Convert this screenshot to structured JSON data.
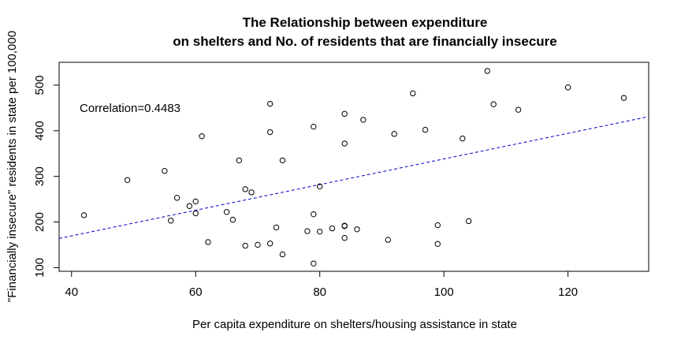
{
  "chart_data": {
    "type": "scatter",
    "title_line1": "The Relationship between expenditure",
    "title_line2": "on shelters and No. of residents that are financially insecure",
    "xlabel": "Per capita expenditure on shelters/housing assistance in state",
    "ylabel": "\"Financially insecure\" residents in state per 100,000",
    "annotation": "Correlation=0.4483",
    "xlim": [
      38,
      133
    ],
    "ylim": [
      92,
      550
    ],
    "x_ticks": [
      40,
      60,
      80,
      100,
      120
    ],
    "y_ticks": [
      100,
      200,
      300,
      400,
      500
    ],
    "grid": false,
    "regression_line": {
      "style": "dashed",
      "color": "#0000cc",
      "intercept": 57.2,
      "slope": 2.81
    },
    "series": [
      {
        "marker": "open-circle",
        "color": "#000000",
        "points": [
          [
            42,
            215
          ],
          [
            49,
            292
          ],
          [
            55,
            312
          ],
          [
            56,
            203
          ],
          [
            57,
            253
          ],
          [
            59,
            235
          ],
          [
            60,
            245
          ],
          [
            60,
            219
          ],
          [
            61,
            388
          ],
          [
            62,
            156
          ],
          [
            65,
            222
          ],
          [
            66,
            205
          ],
          [
            67,
            335
          ],
          [
            68,
            272
          ],
          [
            68,
            148
          ],
          [
            69,
            265
          ],
          [
            70,
            150
          ],
          [
            72,
            459
          ],
          [
            72,
            397
          ],
          [
            72,
            153
          ],
          [
            73,
            188
          ],
          [
            74,
            335
          ],
          [
            74,
            129
          ],
          [
            78,
            180
          ],
          [
            79,
            409
          ],
          [
            79,
            217
          ],
          [
            79,
            109
          ],
          [
            80,
            278
          ],
          [
            80,
            179
          ],
          [
            82,
            186
          ],
          [
            84,
            437
          ],
          [
            84,
            372
          ],
          [
            84,
            192
          ],
          [
            84,
            191
          ],
          [
            84,
            165
          ],
          [
            86,
            184
          ],
          [
            87,
            424
          ],
          [
            91,
            161
          ],
          [
            92,
            393
          ],
          [
            95,
            482
          ],
          [
            97,
            402
          ],
          [
            99,
            193
          ],
          [
            99,
            152
          ],
          [
            103,
            383
          ],
          [
            104,
            202
          ],
          [
            107,
            531
          ],
          [
            108,
            458
          ],
          [
            112,
            446
          ],
          [
            120,
            495
          ],
          [
            129,
            472
          ]
        ]
      }
    ]
  }
}
